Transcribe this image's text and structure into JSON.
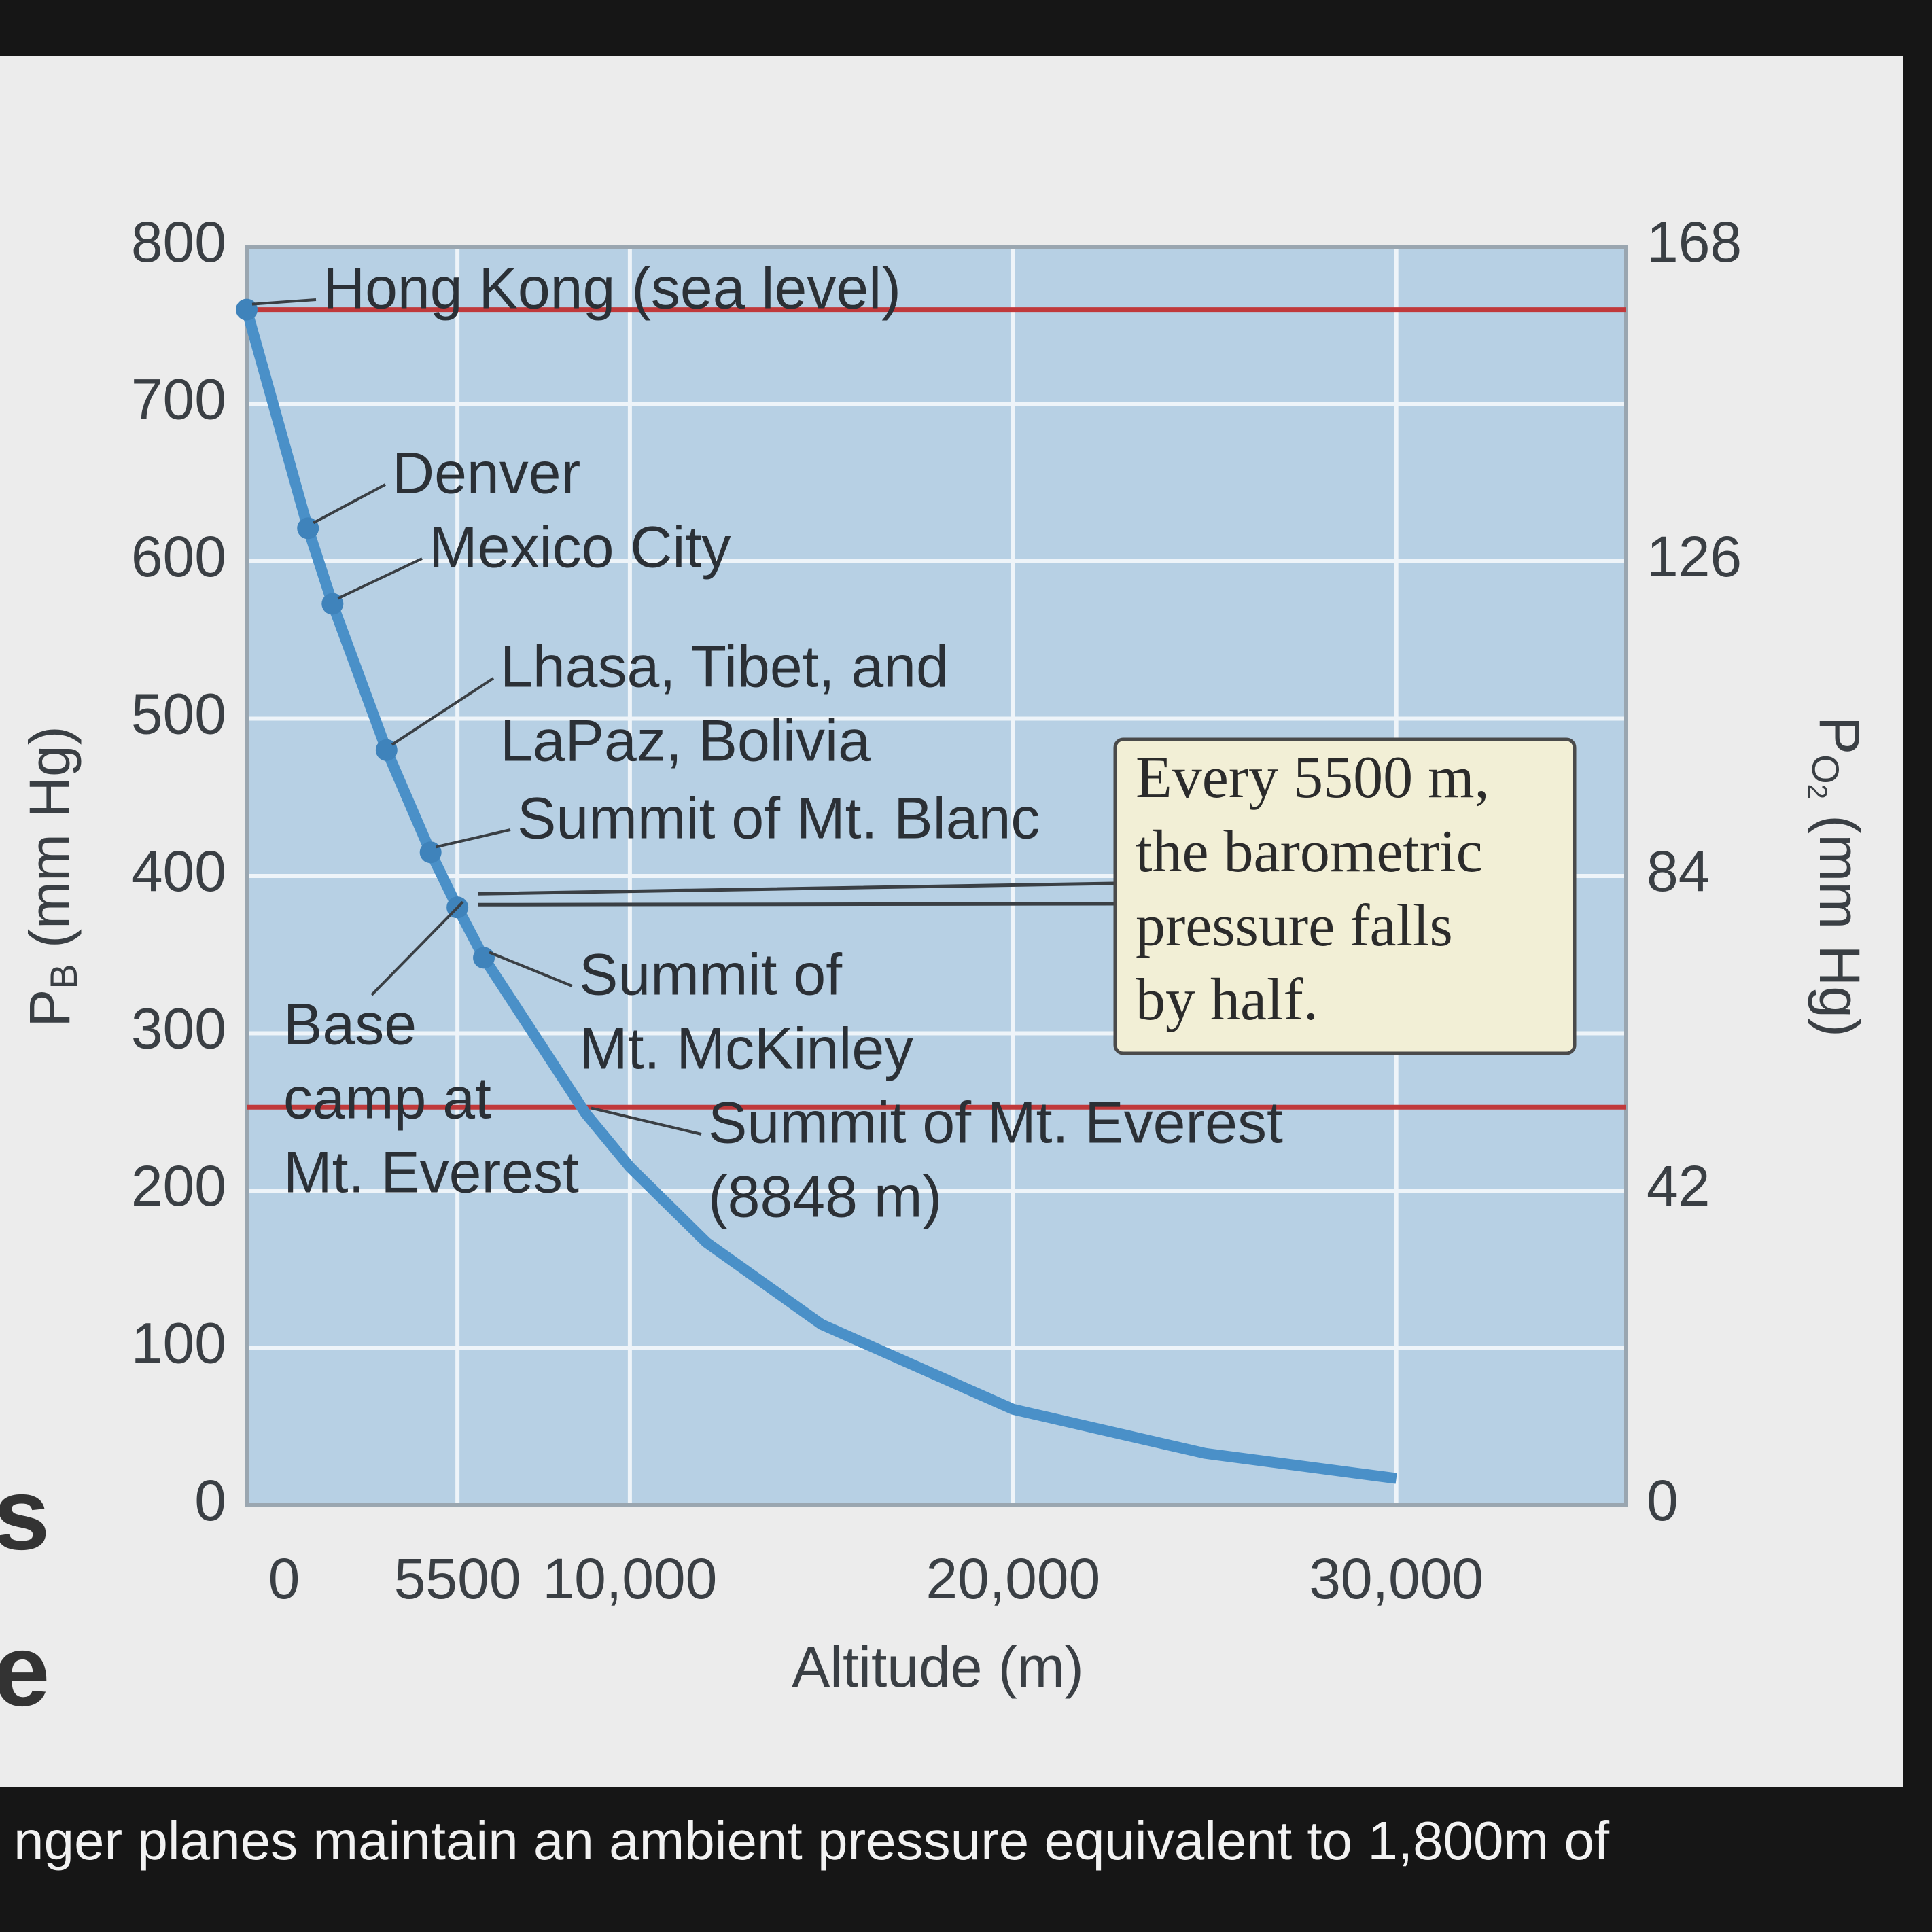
{
  "chart_data": {
    "type": "line",
    "xlabel": "Altitude (m)",
    "ylabel": {
      "main": "P",
      "sub": "B",
      "rest": " (mm Hg)"
    },
    "y2label": {
      "main": "P",
      "sub": "O",
      "subsub": "2",
      "rest": " (mm Hg)"
    },
    "x": [
      0,
      1600,
      2240,
      3650,
      4800,
      5500,
      6190,
      8848,
      10000,
      12000,
      15000,
      20000,
      25000,
      30000
    ],
    "series": [
      {
        "name": "Barometric pressure",
        "color": "#4a90c8",
        "values": [
          760,
          621,
          573,
          480,
          415,
          380,
          348,
          249,
          215,
          167,
          115,
          61,
          33,
          17
        ]
      }
    ],
    "xlim": [
      0,
      36000
    ],
    "xticks": [
      0,
      5500,
      {
        "value": 10000,
        "label": "10,000"
      },
      {
        "value": 20000,
        "label": "20,000"
      },
      {
        "value": 30000,
        "label": "30,000"
      }
    ],
    "ylim": [
      0,
      800
    ],
    "yticks": [
      0,
      100,
      200,
      300,
      400,
      500,
      600,
      700,
      800
    ],
    "y2lim": [
      0,
      168
    ],
    "y2ticks": [
      0,
      42,
      84,
      126,
      168
    ],
    "grid": true,
    "reference_lines": {
      "color": "#c0393b",
      "values": [
        760,
        253
      ]
    },
    "annotations": [
      {
        "lines": [
          "Hong Kong (sea level)"
        ],
        "point": 0
      },
      {
        "lines": [
          "Denver"
        ],
        "point": 1
      },
      {
        "lines": [
          "Mexico City"
        ],
        "point": 2
      },
      {
        "lines": [
          "Lhasa, Tibet, and",
          "LaPaz, Bolivia"
        ],
        "point": 3
      },
      {
        "lines": [
          "Summit of Mt. Blanc"
        ],
        "point": 4
      },
      {
        "lines": [
          "Base",
          "camp at",
          "Mt. Everest"
        ],
        "point": 5
      },
      {
        "lines": [
          "Summit of",
          "Mt. McKinley"
        ],
        "point": 6
      },
      {
        "lines": [
          "Summit of Mt. Everest",
          "(8848 m)"
        ],
        "point": 7
      }
    ],
    "note_box": [
      "Every 5500 m,",
      "the barometric",
      "pressure falls",
      "by half."
    ]
  },
  "screen": {
    "caption": "nger planes maintain an ambient pressure equivalent to 1,800m of",
    "side_letters": [
      "s",
      "e"
    ]
  }
}
